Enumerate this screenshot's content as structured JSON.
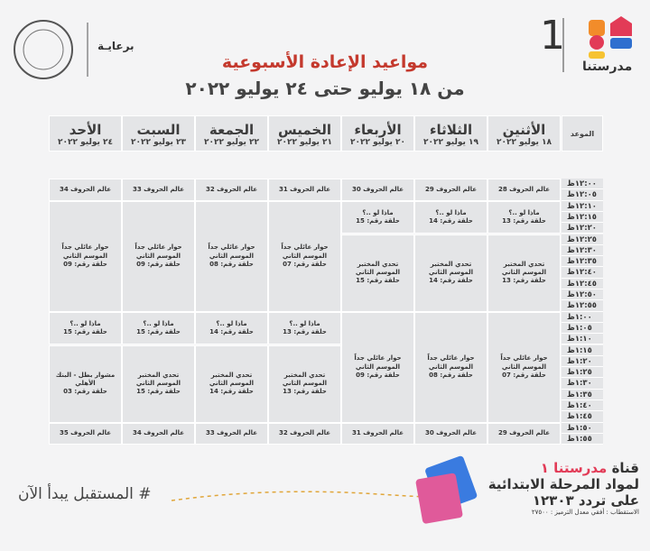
{
  "header": {
    "channel_number": "1",
    "logo_text": "مدرستنا",
    "title": "مواعيد الإعادة الأسبوعية",
    "subtitle": "من ١٨ يوليو حتى ٢٤ يوليو ٢٠٢٢",
    "sponsor": "برعايـة"
  },
  "table": {
    "time_header": "الموعد",
    "times": [
      "١٢:٠٠ظ",
      "١٢:٠٥ظ",
      "١٢:١٠ظ",
      "١٢:١٥ظ",
      "١٢:٢٠ظ",
      "١٢:٢٥ظ",
      "١٢:٣٠ظ",
      "١٢:٣٥ظ",
      "١٢:٤٠ظ",
      "١٢:٤٥ظ",
      "١٢:٥٠ظ",
      "١٢:٥٥ظ",
      "١:٠٠ظ",
      "١:٠٥ظ",
      "١:١٠ظ",
      "١:١٥ظ",
      "١:٢٠ظ",
      "١:٢٥ظ",
      "١:٣٠ظ",
      "١:٣٥ظ",
      "١:٤٠ظ",
      "١:٤٥ظ",
      "١:٥٠ظ",
      "١:٥٥ظ"
    ],
    "days": [
      {
        "name": "الأثنين",
        "date": "١٨ يوليو ٢٠٢٢",
        "blocks": [
          {
            "title": "عالم الحروف 28"
          },
          {
            "title": "ماذا لو ..؟",
            "episode": "حلقة رقم: 13"
          },
          {
            "title": "تحدي المختبر الموسم الثاني",
            "episode": "حلقة رقم: 13"
          },
          {
            "title": "حوار عائلي جداً الموسم الثاني",
            "episode": "حلقة رقم: 07"
          },
          {
            "title": "عالم الحروف 29"
          }
        ]
      },
      {
        "name": "الثلاثاء",
        "date": "١٩ يوليو ٢٠٢٢",
        "blocks": [
          {
            "title": "عالم الحروف 29"
          },
          {
            "title": "ماذا لو ..؟",
            "episode": "حلقة رقم: 14"
          },
          {
            "title": "تحدي المختبر الموسم الثاني",
            "episode": "حلقة رقم: 14"
          },
          {
            "title": "حوار عائلي جداً الموسم الثاني",
            "episode": "حلقة رقم: 08"
          },
          {
            "title": "عالم الحروف 30"
          }
        ]
      },
      {
        "name": "الأربعاء",
        "date": "٢٠ يوليو ٢٠٢٢",
        "blocks": [
          {
            "title": "عالم الحروف 30"
          },
          {
            "title": "ماذا لو ..؟",
            "episode": "حلقة رقم: 15"
          },
          {
            "title": "تحدي المختبر الموسم الثاني",
            "episode": "حلقة رقم: 15"
          },
          {
            "title": "حوار عائلي جداً الموسم الثاني",
            "episode": "حلقة رقم: 09"
          },
          {
            "title": "عالم الحروف 31"
          }
        ]
      },
      {
        "name": "الخميس",
        "date": "٢١ يوليو ٢٠٢٢",
        "blocks": [
          {
            "title": "عالم الحروف 31"
          },
          {
            "title": "حوار عائلي جداً الموسم الثاني",
            "episode": "حلقة رقم: 07"
          },
          {
            "title": "ماذا لو ..؟",
            "episode": "حلقة رقم: 13"
          },
          {
            "title": "تحدي المختبر الموسم الثاني",
            "episode": "حلقة رقم: 13"
          },
          {
            "title": "عالم الحروف 32"
          }
        ]
      },
      {
        "name": "الجمعة",
        "date": "٢٢ يوليو ٢٠٢٢",
        "blocks": [
          {
            "title": "عالم الحروف 32"
          },
          {
            "title": "حوار عائلي جداً الموسم الثاني",
            "episode": "حلقة رقم: 08"
          },
          {
            "title": "ماذا لو ..؟",
            "episode": "حلقة رقم: 14"
          },
          {
            "title": "تحدي المختبر الموسم الثاني",
            "episode": "حلقة رقم: 14"
          },
          {
            "title": "عالم الحروف 33"
          }
        ]
      },
      {
        "name": "السبت",
        "date": "٢٣ يوليو ٢٠٢٢",
        "blocks": [
          {
            "title": "عالم الحروف 33"
          },
          {
            "title": "حوار عائلي جداً الموسم الثاني",
            "episode": "حلقة رقم: 09"
          },
          {
            "title": "ماذا لو ..؟",
            "episode": "حلقة رقم: 15"
          },
          {
            "title": "تحدي المختبر الموسم الثاني",
            "episode": "حلقة رقم: 15"
          },
          {
            "title": "عالم الحروف 34"
          }
        ]
      },
      {
        "name": "الأحد",
        "date": "٢٤ يوليو ٢٠٢٢",
        "blocks": [
          {
            "title": "عالم الحروف 34"
          },
          {
            "title": "حوار عائلي جداً الموسم الثاني",
            "episode": "حلقة رقم: 09"
          },
          {
            "title": "ماذا لو ..؟",
            "episode": "حلقة رقم: 15"
          },
          {
            "title": "مشوار بطل - البنك الأهلي",
            "episode": "حلقة رقم: 03"
          },
          {
            "title": "عالم الحروف 35"
          }
        ]
      }
    ]
  },
  "footer": {
    "hashtag": "# المستقبل يبدأ الآن",
    "channel_label": "قناة",
    "channel_name": "مدرستنا ١",
    "subtitle": "لمواد المرحلة الابتدائية",
    "frequency": "على تردد ١٢٣٠٣",
    "specs": "الاستقطاب : أفقي معدل الترميز : ٢٧٥٠٠"
  }
}
